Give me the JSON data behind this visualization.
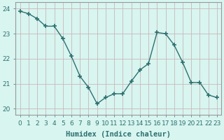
{
  "x": [
    0,
    1,
    2,
    3,
    4,
    5,
    6,
    7,
    8,
    9,
    10,
    11,
    12,
    13,
    14,
    15,
    16,
    17,
    18,
    19,
    20,
    21,
    22,
    23
  ],
  "y": [
    23.9,
    23.8,
    23.6,
    23.3,
    23.3,
    22.8,
    22.1,
    21.3,
    20.85,
    20.2,
    20.45,
    20.6,
    20.6,
    21.1,
    21.55,
    21.8,
    23.05,
    23.0,
    22.55,
    21.85,
    21.05,
    21.05,
    20.55,
    20.45
  ],
  "line_color": "#2e7070",
  "marker": "+",
  "marker_size": 4,
  "marker_lw": 1.2,
  "bg_color": "#d8f5f0",
  "grid_color": "#c8b8b8",
  "spine_color": "#999999",
  "xlabel": "Humidex (Indice chaleur)",
  "xlabel_fontsize": 7.5,
  "xlabel_color": "#2e7070",
  "ylim": [
    19.75,
    24.25
  ],
  "xlim": [
    -0.5,
    23.5
  ],
  "yticks": [
    20,
    21,
    22,
    23,
    24
  ],
  "xticks": [
    0,
    1,
    2,
    3,
    4,
    5,
    6,
    7,
    8,
    9,
    10,
    11,
    12,
    13,
    14,
    15,
    16,
    17,
    18,
    19,
    20,
    21,
    22,
    23
  ],
  "tick_fontsize": 6.5,
  "tick_color": "#2e7070",
  "linewidth": 1.0
}
